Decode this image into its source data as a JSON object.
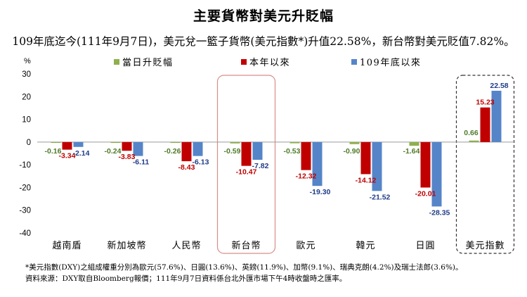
{
  "title": "主要貨幣對美元升貶幅",
  "subtitle": "109年底迄今(111年9月7日)，美元兌一籃子貨幣(美元指數*)升值22.58%，新台幣對美元貶值7.82%。",
  "footnotes": [
    "*美元指數(DXY)之組成權重分別為歐元(57.6%)、日圓(13.6%)、英鎊(11.9%)、加幣(9.1%)、瑞典克朗(4.2%)及瑞士法郎(3.6%)。",
    "資料來源：DXY取自Bloomberg報價；111年9月7日資料係台北外匯市場下午4時收盤時之匯率。"
  ],
  "chart_data": {
    "type": "bar",
    "ylabel": "%",
    "ylim": [
      -40,
      30
    ],
    "yticks": [
      30,
      20,
      10,
      0,
      -10,
      -20,
      -30,
      -40
    ],
    "legend_position": "top",
    "categories": [
      "越南盾",
      "新加坡幣",
      "人民幣",
      "新台幣",
      "歐元",
      "韓元",
      "日圓",
      "美元指數"
    ],
    "series": [
      {
        "name": "當日升貶幅",
        "color": "#8DB04E",
        "label_color": "#4E7A28",
        "values": [
          -0.16,
          -0.24,
          -0.26,
          -0.59,
          -0.53,
          -0.9,
          -1.64,
          0.66
        ]
      },
      {
        "name": "本年以來",
        "color": "#C00000",
        "label_color": "#C00000",
        "values": [
          -3.34,
          -3.83,
          -8.43,
          -10.47,
          -12.32,
          -14.12,
          -20.01,
          15.23
        ]
      },
      {
        "name": "109年底以來",
        "color": "#5585C8",
        "label_color": "#1F3C88",
        "values": [
          -2.14,
          -6.11,
          -6.13,
          -7.82,
          -19.3,
          -21.52,
          -28.35,
          22.58
        ]
      }
    ],
    "highlight": [
      {
        "category": "新台幣",
        "style": "solid",
        "color": "#D98C8C"
      },
      {
        "category": "美元指數",
        "style": "dashed",
        "color": "#333333"
      }
    ],
    "grid": false
  }
}
